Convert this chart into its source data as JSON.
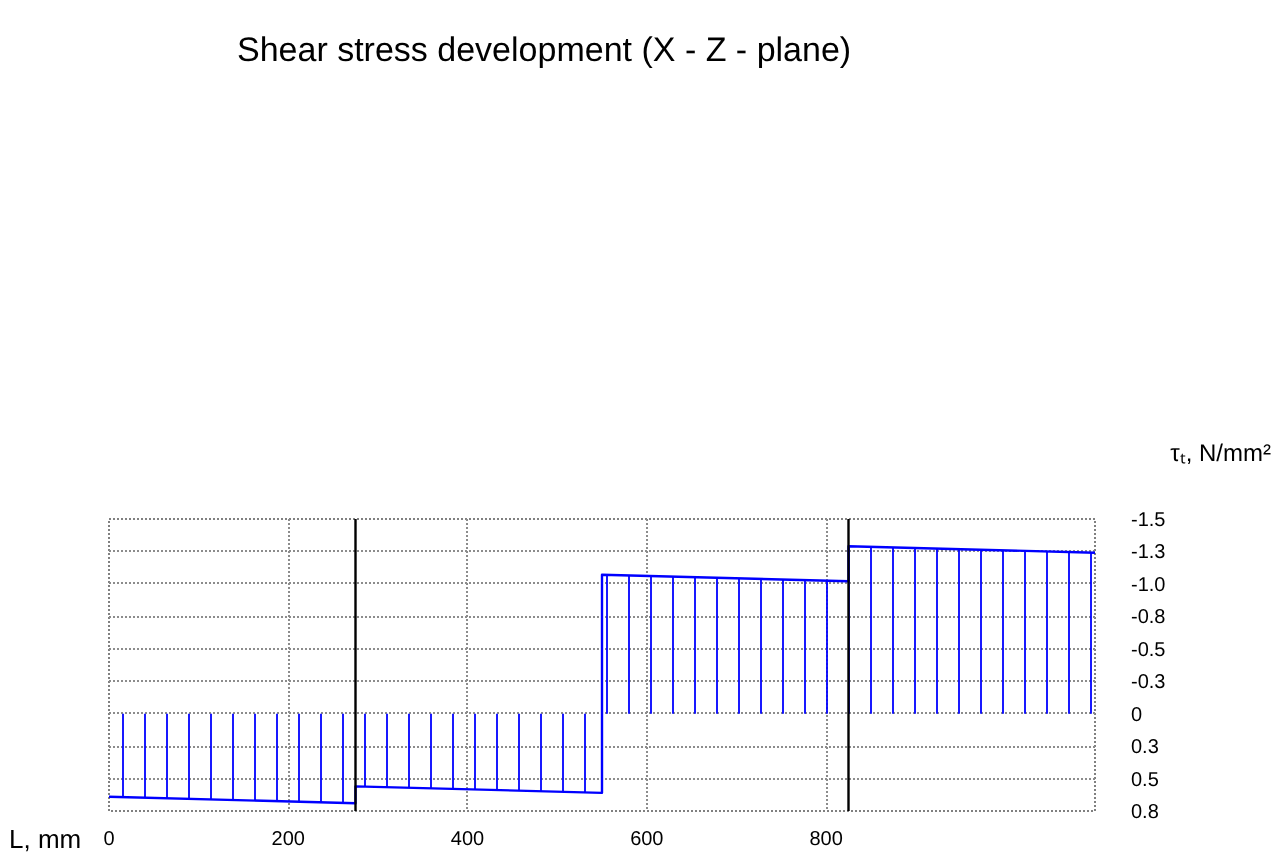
{
  "chart_data": {
    "type": "area",
    "title": "Shear stress development (X - Z - plane)",
    "xlabel": "L, mm",
    "ylabel": "τₜ, N/mm²",
    "x": [
      0,
      275,
      275,
      550,
      550,
      825,
      825,
      1100
    ],
    "values": [
      0.64,
      0.69,
      0.56,
      0.61,
      -1.07,
      -1.02,
      -1.29,
      -1.24
    ],
    "color": "#0000ff",
    "xlim": [
      0,
      1100
    ],
    "xticks": [
      0,
      200,
      400,
      600,
      800
    ],
    "ylim": [
      0.75,
      -1.5
    ],
    "yticks": [
      -1.5,
      {
        "value": -1.25,
        "label": "-1.3"
      },
      {
        "value": -1,
        "label": "-1.0"
      },
      {
        "value": -0.75,
        "label": "-0.8"
      },
      -0.5,
      {
        "value": -0.25,
        "label": "-0.3"
      },
      0,
      {
        "value": 0.25,
        "label": "0.3"
      },
      0.5,
      {
        "value": 0.75,
        "label": "0.8"
      }
    ],
    "grid": true,
    "ref_lines": [
      {
        "axis": "x",
        "value": 275,
        "color": "#000000"
      },
      {
        "axis": "x",
        "value": 825,
        "color": "#000000"
      }
    ]
  }
}
